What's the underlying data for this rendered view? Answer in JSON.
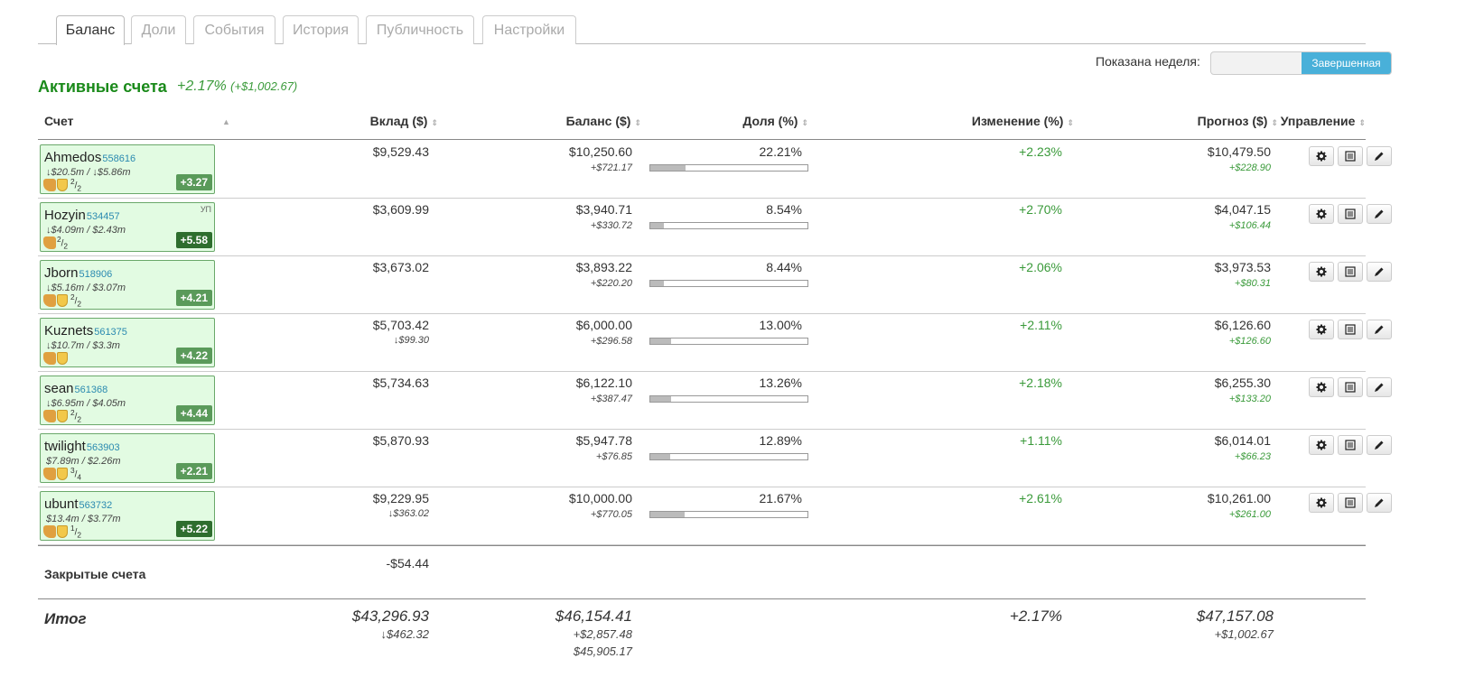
{
  "tabs": [
    {
      "label": "Баланс",
      "active": true
    },
    {
      "label": "Доли",
      "active": false
    },
    {
      "label": "События",
      "active": false
    },
    {
      "label": "История",
      "active": false
    },
    {
      "label": "Публичность",
      "active": false
    },
    {
      "label": "Настройки",
      "active": false
    }
  ],
  "week": {
    "label": "Показана неделя:",
    "selected": "Завершенная"
  },
  "section": {
    "title": "Активные счета",
    "change_pct": "+2.17%",
    "change_abs": "(+$1,002.67)"
  },
  "columns": {
    "account": "Счет",
    "deposit": "Вклад ($)",
    "balance": "Баланс ($)",
    "share": "Доля (%)",
    "change": "Изменение (%)",
    "forecast": "Прогноз ($)",
    "manage": "Управление"
  },
  "accounts": [
    {
      "name": "Ahmedos",
      "id": "558616",
      "volume": "↓$20.5m / ↓$5.86m",
      "icons": "thumb,shield",
      "frac_num": "2",
      "frac_den": "2",
      "tag": "",
      "badge": "+3.27",
      "badge_dark": false,
      "deposit": "$9,529.43",
      "deposit_sub": "",
      "balance": "$10,250.60",
      "balance_sub": "+$721.17",
      "share": "22.21%",
      "share_value": 22.21,
      "change": "+2.23%",
      "forecast": "$10,479.50",
      "forecast_sub": "+$228.90"
    },
    {
      "name": "Hozyin",
      "id": "534457",
      "volume": "↓$4.09m / $2.43m",
      "icons": "thumb",
      "frac_num": "2",
      "frac_den": "2",
      "tag": "УП",
      "badge": "+5.58",
      "badge_dark": true,
      "deposit": "$3,609.99",
      "deposit_sub": "",
      "balance": "$3,940.71",
      "balance_sub": "+$330.72",
      "share": "8.54%",
      "share_value": 8.54,
      "change": "+2.70%",
      "forecast": "$4,047.15",
      "forecast_sub": "+$106.44"
    },
    {
      "name": "Jborn",
      "id": "518906",
      "volume": "↓$5.16m / $3.07m",
      "icons": "thumb,shield",
      "frac_num": "2",
      "frac_den": "2",
      "tag": "",
      "badge": "+4.21",
      "badge_dark": false,
      "deposit": "$3,673.02",
      "deposit_sub": "",
      "balance": "$3,893.22",
      "balance_sub": "+$220.20",
      "share": "8.44%",
      "share_value": 8.44,
      "change": "+2.06%",
      "forecast": "$3,973.53",
      "forecast_sub": "+$80.31"
    },
    {
      "name": "Kuznets",
      "id": "561375",
      "volume": "↓$10.7m / $3.3m",
      "icons": "thumb,shield",
      "frac_num": "",
      "frac_den": "",
      "tag": "",
      "badge": "+4.22",
      "badge_dark": false,
      "deposit": "$5,703.42",
      "deposit_sub": "↓$99.30",
      "balance": "$6,000.00",
      "balance_sub": "+$296.58",
      "share": "13.00%",
      "share_value": 13.0,
      "change": "+2.11%",
      "forecast": "$6,126.60",
      "forecast_sub": "+$126.60"
    },
    {
      "name": "sean",
      "id": "561368",
      "volume": "↓$6.95m / $4.05m",
      "icons": "thumb,shield",
      "frac_num": "2",
      "frac_den": "2",
      "tag": "",
      "badge": "+4.44",
      "badge_dark": false,
      "deposit": "$5,734.63",
      "deposit_sub": "",
      "balance": "$6,122.10",
      "balance_sub": "+$387.47",
      "share": "13.26%",
      "share_value": 13.26,
      "change": "+2.18%",
      "forecast": "$6,255.30",
      "forecast_sub": "+$133.20"
    },
    {
      "name": "twilight",
      "id": "563903",
      "volume": "$7.89m / $2.26m",
      "icons": "thumb,shield",
      "frac_num": "3",
      "frac_den": "4",
      "tag": "",
      "badge": "+2.21",
      "badge_dark": false,
      "deposit": "$5,870.93",
      "deposit_sub": "",
      "balance": "$5,947.78",
      "balance_sub": "+$76.85",
      "share": "12.89%",
      "share_value": 12.89,
      "change": "+1.11%",
      "forecast": "$6,014.01",
      "forecast_sub": "+$66.23"
    },
    {
      "name": "ubunt",
      "id": "563732",
      "volume": "$13.4m / $3.77m",
      "icons": "thumb,shield",
      "frac_num": "1",
      "frac_den": "2",
      "tag": "",
      "badge": "+5.22",
      "badge_dark": true,
      "deposit": "$9,229.95",
      "deposit_sub": "↓$363.02",
      "balance": "$10,000.00",
      "balance_sub": "+$770.05",
      "share": "21.67%",
      "share_value": 21.67,
      "change": "+2.61%",
      "forecast": "$10,261.00",
      "forecast_sub": "+$261.00"
    }
  ],
  "closed": {
    "label": "Закрытые счета",
    "deposit": "-$54.44"
  },
  "total": {
    "label": "Итог",
    "deposit": "$43,296.93",
    "deposit_sub": "↓$462.32",
    "balance": "$46,154.41",
    "balance_sub": "+$2,857.48",
    "balance_sub2": "$45,905.17",
    "change": "+2.17%",
    "forecast": "$47,157.08",
    "forecast_sub": "+$1,002.67"
  },
  "colors": {
    "accent_green": "#1a8a1a",
    "positive": "#3a9a3a",
    "toggle_active": "#49b0d9",
    "account_bg": "#e2fbe2"
  }
}
